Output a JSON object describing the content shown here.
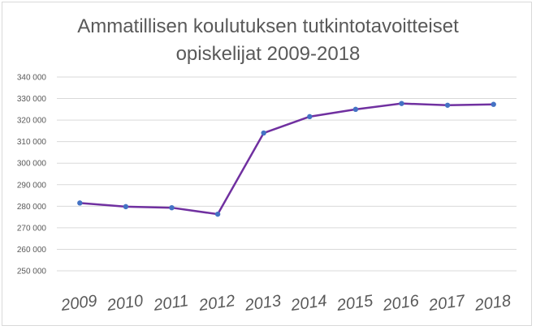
{
  "chart_data": {
    "type": "line",
    "title_lines": [
      "Ammatillisen koulutuksen tutkintotavoitteiset",
      "opiskelijat 2009-2018"
    ],
    "xlabel": "",
    "ylabel": "",
    "categories": [
      "2009",
      "2010",
      "2011",
      "2012",
      "2013",
      "2014",
      "2015",
      "2016",
      "2017",
      "2018"
    ],
    "series": [
      {
        "values": [
          281500,
          279800,
          279300,
          276300,
          314000,
          321600,
          325000,
          327700,
          326900,
          327300
        ]
      }
    ],
    "ylim": [
      250000,
      340000
    ],
    "ytick_labels": [
      "250 000",
      "260 000",
      "270 000",
      "280 000",
      "290 000",
      "300 000",
      "310 000",
      "320 000",
      "330 000",
      "340 000"
    ],
    "grid": true,
    "legend": "none",
    "line_color": "#7030a0",
    "marker_color": "#4472c4",
    "gridline_color": "#d9d9d9",
    "text_color": "#595959"
  }
}
